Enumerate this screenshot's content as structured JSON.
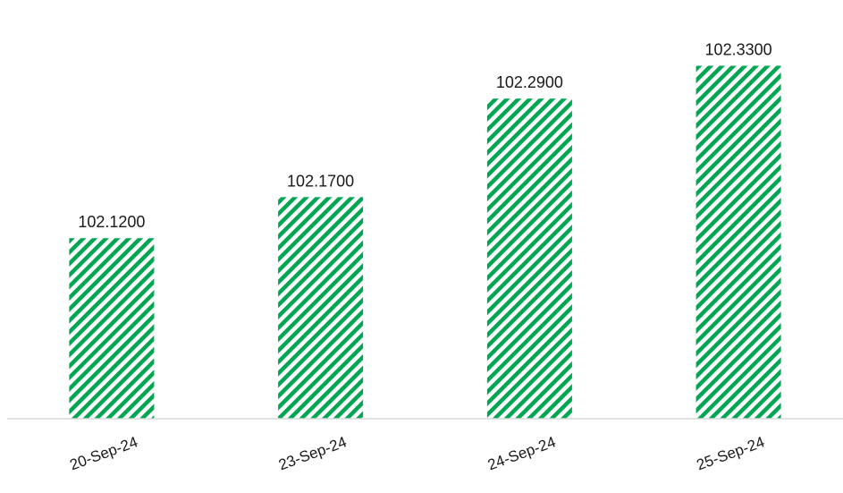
{
  "chart_data": {
    "type": "bar",
    "categories": [
      "20-Sep-24",
      "23-Sep-24",
      "24-Sep-24",
      "25-Sep-24"
    ],
    "values": [
      102.12,
      102.17,
      102.29,
      102.33
    ],
    "data_labels": [
      "102.1200",
      "102.1700",
      "102.2900",
      "102.3300"
    ],
    "title": "",
    "xlabel": "",
    "ylabel": "",
    "ylim": [
      101.9,
      102.36
    ],
    "grid": false,
    "legend": "none",
    "bar_pattern": "diagonal-stripes",
    "colors": {
      "bar_fill": "#00A651",
      "baseline": "#d9d9d9"
    }
  }
}
